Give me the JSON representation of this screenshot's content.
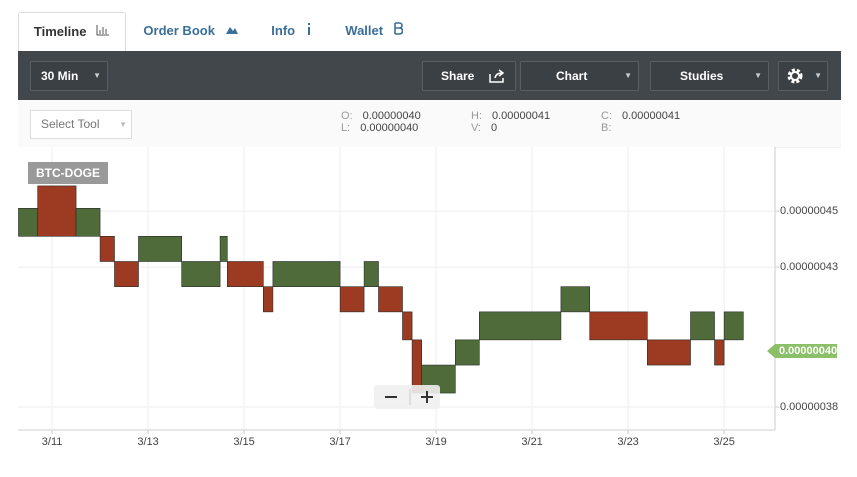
{
  "tabs": [
    {
      "label": "Timeline",
      "active": true
    },
    {
      "label": "Order Book",
      "active": false
    },
    {
      "label": "Info",
      "active": false
    },
    {
      "label": "Wallet",
      "active": false
    }
  ],
  "toolbar": {
    "interval": "30 Min",
    "share": "Share",
    "chart": "Chart",
    "studies": "Studies",
    "select_tool": "Select Tool"
  },
  "stats": [
    {
      "label": "O:",
      "value": "0.00000040"
    },
    {
      "label": "L:",
      "value": "0.00000040"
    },
    {
      "label": "H:",
      "value": "0.00000041"
    },
    {
      "label": "V:",
      "value": "0"
    },
    {
      "label": "C:",
      "value": "0.00000041"
    },
    {
      "label": "B:"
    }
  ],
  "chart": {
    "type": "candlestick",
    "symbol": "BTC-DOGE",
    "xlim": [
      10.29,
      26.06
    ],
    "xticks": [
      {
        "value": 11,
        "label": "3/11"
      },
      {
        "value": 13,
        "label": "3/13"
      },
      {
        "value": 15,
        "label": "3/15"
      },
      {
        "value": 17,
        "label": "3/17"
      },
      {
        "value": 19,
        "label": "3/19"
      },
      {
        "value": 21,
        "label": "3/21"
      },
      {
        "value": 23,
        "label": "3/23"
      },
      {
        "value": 25,
        "label": "3/25"
      }
    ],
    "ylim": [
      3.718e-07,
      4.729e-07
    ],
    "yticks": [
      {
        "value": 4.5e-07,
        "label": "0.00000045"
      },
      {
        "value": 4.3e-07,
        "label": "0.00000043"
      },
      {
        "value": 3.8e-07,
        "label": "0.00000038"
      }
    ],
    "grid": true,
    "up_color": "#4f6b3a",
    "down_color": "#9c3a22",
    "candles": {
      "start": [
        10.3,
        10.7,
        11.5,
        12.0,
        12.3,
        12.8,
        13.7,
        14.5,
        14.65,
        15.4,
        15.6,
        17.0,
        17.5,
        17.8,
        18.3,
        18.5,
        18.7,
        19.4,
        19.9,
        21.6,
        22.2,
        23.4,
        24.3,
        24.8,
        25.0
      ],
      "end": [
        10.7,
        11.5,
        12.0,
        12.3,
        12.8,
        13.7,
        14.5,
        14.65,
        15.4,
        15.6,
        17.0,
        17.5,
        17.8,
        18.3,
        18.5,
        18.7,
        19.4,
        19.9,
        21.6,
        22.2,
        23.4,
        24.3,
        24.8,
        25.0,
        25.4
      ],
      "open": [
        4.41e-07,
        4.59e-07,
        4.41e-07,
        4.41e-07,
        4.32e-07,
        4.32e-07,
        4.23e-07,
        4.32e-07,
        4.32e-07,
        4.23e-07,
        4.23e-07,
        4.23e-07,
        4.23e-07,
        4.23e-07,
        4.14e-07,
        4.04e-07,
        3.85e-07,
        3.95e-07,
        4.04e-07,
        4.14e-07,
        4.14e-07,
        4.04e-07,
        4.04e-07,
        4.04e-07,
        4.04e-07
      ],
      "close": [
        4.51e-07,
        4.41e-07,
        4.51e-07,
        4.32e-07,
        4.23e-07,
        4.41e-07,
        4.32e-07,
        4.41e-07,
        4.23e-07,
        4.14e-07,
        4.32e-07,
        4.14e-07,
        4.32e-07,
        4.14e-07,
        4.04e-07,
        3.85e-07,
        3.95e-07,
        4.04e-07,
        4.14e-07,
        4.23e-07,
        4.04e-07,
        3.95e-07,
        4.14e-07,
        3.95e-07,
        4.14e-07
      ]
    },
    "last_price": {
      "value": 4e-07,
      "label": "0.00000040"
    },
    "last_price_color": "#8cc068"
  }
}
